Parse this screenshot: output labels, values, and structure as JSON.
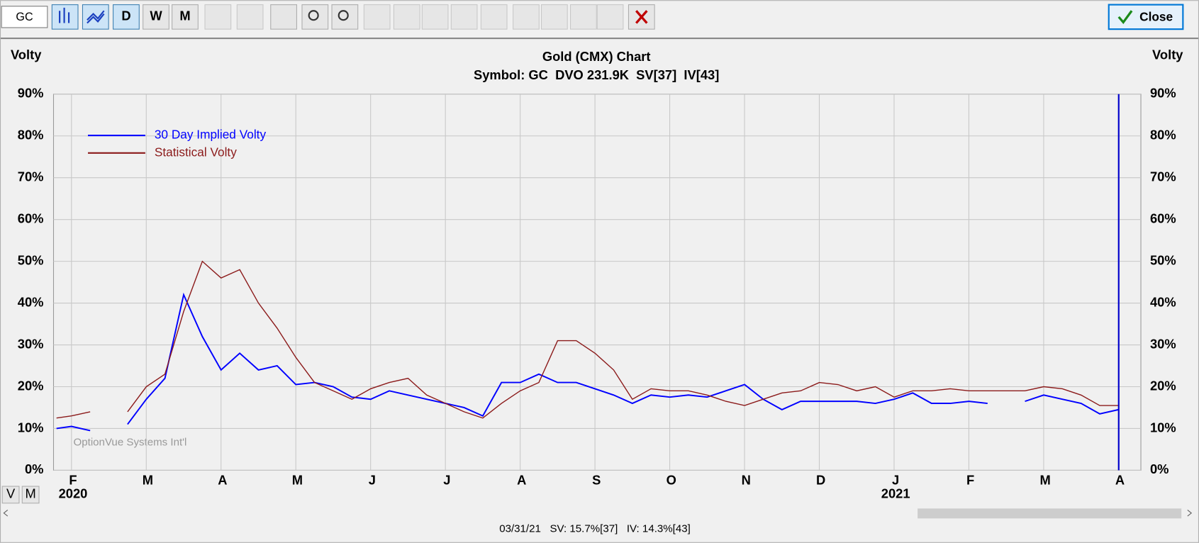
{
  "toolbar": {
    "symbol": "GC",
    "buttons": [
      "D",
      "W",
      "M"
    ],
    "close": "Close"
  },
  "chart_data": {
    "type": "line",
    "title": "Gold (CMX) Chart",
    "subtitle": "Symbol: GC  DVO 231.9K  SV[37]  IV[43]",
    "y_label": "Volty",
    "watermark": "OptionVue Systems Int'l",
    "x": [
      0.8,
      1.0,
      1.25,
      1.5,
      1.75,
      2.0,
      2.25,
      2.5,
      2.75,
      3.0,
      3.25,
      3.5,
      3.75,
      4.0,
      4.25,
      4.5,
      4.75,
      5.0,
      5.25,
      5.5,
      5.75,
      6.0,
      6.25,
      6.5,
      6.75,
      7.0,
      7.25,
      7.5,
      7.75,
      8.0,
      8.25,
      8.5,
      8.75,
      9.0,
      9.25,
      9.5,
      9.75,
      10.0,
      10.25,
      10.5,
      10.75,
      11.0,
      11.25,
      11.5,
      11.75,
      12.0,
      12.25,
      12.5,
      12.75,
      13.0,
      13.25,
      13.5,
      13.75,
      14.0,
      14.25,
      14.5,
      14.75,
      15.0
    ],
    "xlim": [
      0.76,
      15.3
    ],
    "xticks": [
      {
        "value": 1,
        "label": "F"
      },
      {
        "value": 2,
        "label": "M"
      },
      {
        "value": 3,
        "label": "A"
      },
      {
        "value": 4,
        "label": "M"
      },
      {
        "value": 5,
        "label": "J"
      },
      {
        "value": 6,
        "label": "J"
      },
      {
        "value": 7,
        "label": "A"
      },
      {
        "value": 8,
        "label": "S"
      },
      {
        "value": 9,
        "label": "O"
      },
      {
        "value": 10,
        "label": "N"
      },
      {
        "value": 11,
        "label": "D"
      },
      {
        "value": 12,
        "label": "J"
      },
      {
        "value": 13,
        "label": "F"
      },
      {
        "value": 14,
        "label": "M"
      },
      {
        "value": 15,
        "label": "A"
      }
    ],
    "year_labels": [
      {
        "value": 1,
        "label": "2020"
      },
      {
        "value": 12,
        "label": "2021"
      }
    ],
    "ylim": [
      0,
      90
    ],
    "yticks": [
      {
        "value": 0,
        "label": "0%"
      },
      {
        "value": 10,
        "label": "10%"
      },
      {
        "value": 20,
        "label": "20%"
      },
      {
        "value": 30,
        "label": "30%"
      },
      {
        "value": 40,
        "label": "40%"
      },
      {
        "value": 50,
        "label": "50%"
      },
      {
        "value": 60,
        "label": "60%"
      },
      {
        "value": 70,
        "label": "70%"
      },
      {
        "value": 80,
        "label": "80%"
      },
      {
        "value": 90,
        "label": "90%"
      }
    ],
    "grid": true,
    "legend": "upper left",
    "series": [
      {
        "name": "30 Day Implied Volty",
        "color": "#0000ff",
        "values": [
          10,
          10.5,
          9.5,
          null,
          11,
          17,
          22,
          42,
          32,
          24,
          28,
          24,
          25,
          20.5,
          21,
          20,
          17.5,
          17,
          19,
          18,
          17,
          16,
          15,
          13,
          21,
          21,
          23,
          21,
          21,
          19.5,
          18,
          16,
          18,
          17.5,
          18,
          17.5,
          19,
          20.5,
          17,
          14.5,
          16.5,
          16.5,
          16.5,
          16.5,
          16,
          17,
          18.5,
          16,
          16,
          16.5,
          16,
          null,
          16.5,
          18,
          17,
          16,
          13.5,
          14.5
        ]
      },
      {
        "name": "Statistical Volty",
        "color": "#8b1a1a",
        "values": [
          12.5,
          13,
          14,
          null,
          14,
          20,
          23,
          38,
          50,
          46,
          48,
          40,
          34,
          27,
          21,
          19,
          17,
          19.5,
          21,
          22,
          18,
          16,
          14,
          12.5,
          16,
          19,
          21,
          31,
          31,
          28,
          24,
          17,
          19.5,
          19,
          19,
          18,
          16.5,
          15.5,
          17,
          18.5,
          19,
          21,
          20.5,
          19,
          20,
          17.5,
          19,
          19,
          19.5,
          19,
          19,
          19,
          19,
          20,
          19.5,
          18,
          15.5,
          15.5
        ]
      }
    ]
  },
  "view_buttons": [
    "V",
    "M"
  ],
  "status": "03/31/21   SV: 15.7%[37]   IV: 14.3%[43]"
}
